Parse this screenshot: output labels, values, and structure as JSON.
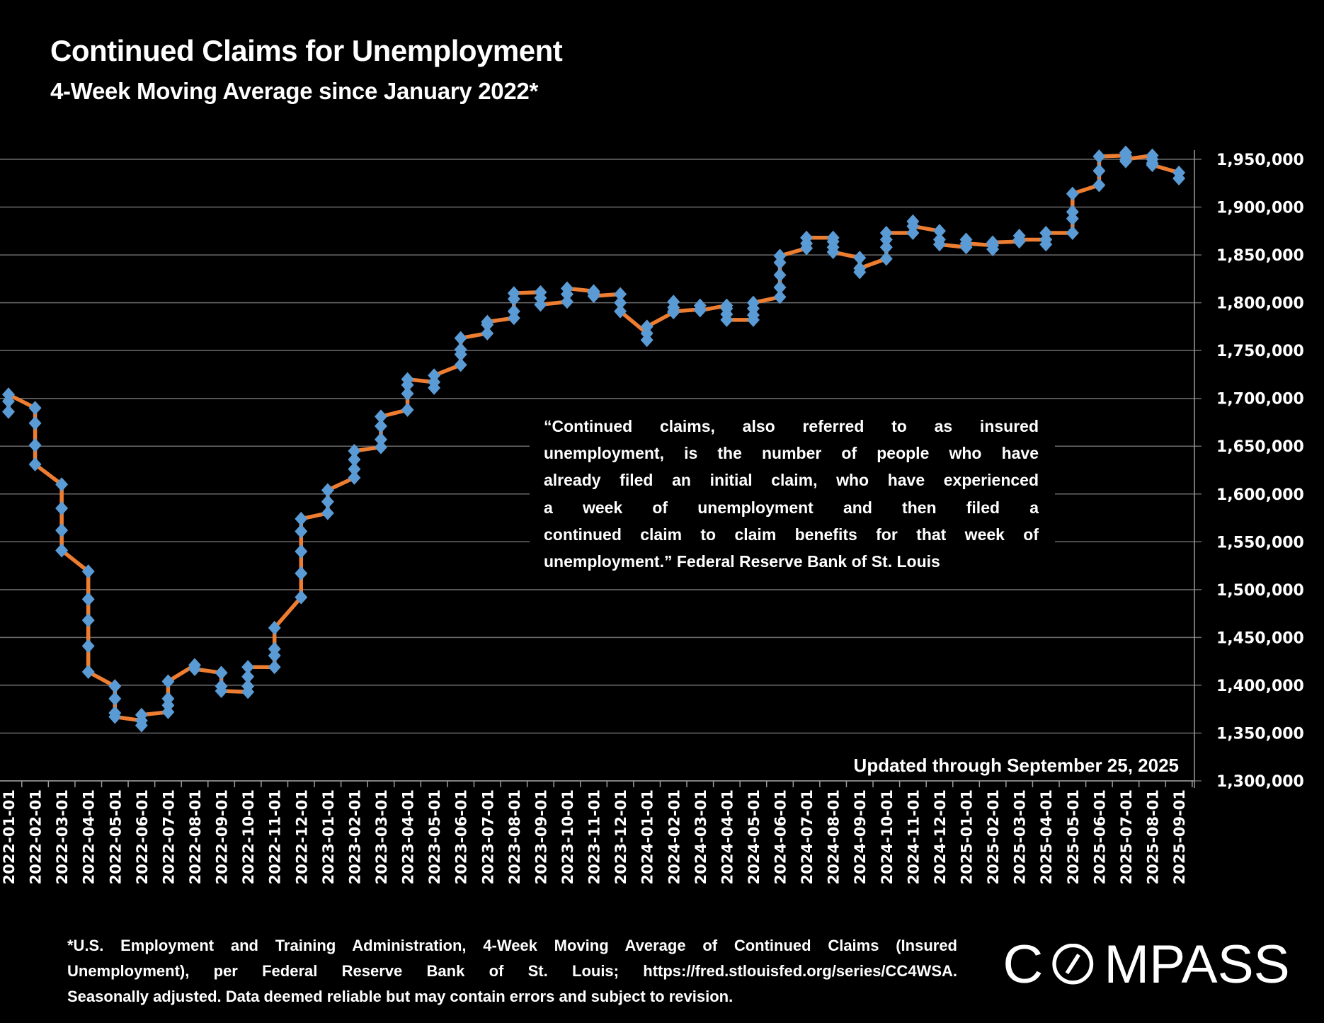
{
  "header": {
    "title": "Continued Claims for Unemployment",
    "subtitle": "4-Week Moving Average since January 2022*"
  },
  "annotation": {
    "lines": [
      "“Continued claims, also referred to as insured",
      "unemployment, is the number of people who have",
      "already filed an initial claim, who have experienced",
      "a week of unemployment and then filed a",
      "continued claim to claim benefits for that week of",
      "unemployment.”  Federal Reserve Bank of St. Louis"
    ],
    "updated": "Updated through September 25, 2025"
  },
  "footer": {
    "lines": [
      "*U.S. Employment and Training Administration, 4-Week Moving Average of Continued Claims (Insured",
      "Unemployment), per Federal Reserve Bank of St. Louis; https://fred.stlouisfed.org/series/CC4WSA.",
      "Seasonally adjusted. Data deemed reliable but may contain errors and subject to revision."
    ]
  },
  "logo": "COMPASS",
  "colors": {
    "line": "#ED7D31",
    "marker": "#5B9BD5",
    "grid": "#6b6b6b",
    "background": "#000000",
    "text": "#ffffff"
  },
  "chart_data": {
    "type": "line",
    "title": "Continued Claims for Unemployment",
    "subtitle": "4-Week Moving Average since January 2022*",
    "marker": "diamond",
    "grid": true,
    "y_axis_position": "right",
    "ylim": [
      1300000,
      1950000
    ],
    "y_ticks": [
      "1,950,000",
      "1,900,000",
      "1,850,000",
      "1,800,000",
      "1,750,000",
      "1,700,000",
      "1,650,000",
      "1,600,000",
      "1,550,000",
      "1,500,000",
      "1,450,000",
      "1,400,000",
      "1,350,000",
      "1,300,000"
    ],
    "y_tick_values": [
      1950000,
      1900000,
      1850000,
      1800000,
      1750000,
      1700000,
      1650000,
      1600000,
      1550000,
      1500000,
      1450000,
      1400000,
      1350000,
      1300000
    ],
    "series": [
      {
        "weekly_values_by_month": [
          {
            "month": "2022-01-01",
            "values": [
              1686000,
              1697000,
              1704000
            ]
          },
          {
            "month": "2022-02-01",
            "values": [
              1690000,
              1674000,
              1651000,
              1631000
            ]
          },
          {
            "month": "2022-03-01",
            "values": [
              1610000,
              1585000,
              1562000,
              1541000
            ]
          },
          {
            "month": "2022-04-01",
            "values": [
              1519000,
              1490000,
              1468000,
              1441000,
              1414000
            ]
          },
          {
            "month": "2022-05-01",
            "values": [
              1399000,
              1386000,
              1371000,
              1367000
            ]
          },
          {
            "month": "2022-06-01",
            "values": [
              1363000,
              1358000,
              1369000
            ]
          },
          {
            "month": "2022-07-01",
            "values": [
              1372000,
              1379000,
              1386000,
              1404000
            ]
          },
          {
            "month": "2022-08-01",
            "values": [
              1421000,
              1417000
            ]
          },
          {
            "month": "2022-09-01",
            "values": [
              1413000,
              1399000,
              1394000
            ]
          },
          {
            "month": "2022-10-01",
            "values": [
              1393000,
              1399000,
              1409000,
              1419000
            ]
          },
          {
            "month": "2022-11-01",
            "values": [
              1419000,
              1431000,
              1438000,
              1460000
            ]
          },
          {
            "month": "2022-12-01",
            "values": [
              1492000,
              1517000,
              1540000,
              1561000,
              1574000
            ]
          },
          {
            "month": "2023-01-01",
            "values": [
              1580000,
              1592000,
              1604000
            ]
          },
          {
            "month": "2023-02-01",
            "values": [
              1617000,
              1626000,
              1636000,
              1645000
            ]
          },
          {
            "month": "2023-03-01",
            "values": [
              1649000,
              1657000,
              1671000,
              1681000
            ]
          },
          {
            "month": "2023-04-01",
            "values": [
              1688000,
              1705000,
              1714000,
              1720000
            ]
          },
          {
            "month": "2023-05-01",
            "values": [
              1717000,
              1711000,
              1724000
            ]
          },
          {
            "month": "2023-06-01",
            "values": [
              1735000,
              1746000,
              1751000,
              1763000
            ]
          },
          {
            "month": "2023-07-01",
            "values": [
              1768000,
              1777000,
              1780000
            ]
          },
          {
            "month": "2023-08-01",
            "values": [
              1784000,
              1791000,
              1804000,
              1810000
            ]
          },
          {
            "month": "2023-09-01",
            "values": [
              1811000,
              1805000,
              1798000
            ]
          },
          {
            "month": "2023-10-01",
            "values": [
              1801000,
              1809000,
              1815000
            ]
          },
          {
            "month": "2023-11-01",
            "values": [
              1812000,
              1810000,
              1807000
            ]
          },
          {
            "month": "2023-12-01",
            "values": [
              1809000,
              1800000,
              1791000
            ]
          },
          {
            "month": "2024-01-01",
            "values": [
              1768000,
              1761000,
              1775000
            ]
          },
          {
            "month": "2024-02-01",
            "values": [
              1790000,
              1801000,
              1795000,
              1791000
            ]
          },
          {
            "month": "2024-03-01",
            "values": [
              1793000,
              1797000,
              1793000,
              1792000
            ]
          },
          {
            "month": "2024-04-01",
            "values": [
              1797000,
              1794000,
              1788000,
              1782000
            ]
          },
          {
            "month": "2024-05-01",
            "values": [
              1782000,
              1787000,
              1794000,
              1800000
            ]
          },
          {
            "month": "2024-06-01",
            "values": [
              1806000,
              1816000,
              1829000,
              1842000,
              1849000
            ]
          },
          {
            "month": "2024-07-01",
            "values": [
              1857000,
              1862000,
              1868000
            ]
          },
          {
            "month": "2024-08-01",
            "values": [
              1868000,
              1864000,
              1858000,
              1853000
            ]
          },
          {
            "month": "2024-09-01",
            "values": [
              1847000,
              1832000,
              1836000
            ]
          },
          {
            "month": "2024-10-01",
            "values": [
              1846000,
              1858000,
              1866000,
              1873000
            ]
          },
          {
            "month": "2024-11-01",
            "values": [
              1873000,
              1885000,
              1880000
            ]
          },
          {
            "month": "2024-12-01",
            "values": [
              1875000,
              1866000,
              1861000
            ]
          },
          {
            "month": "2025-01-01",
            "values": [
              1858000,
              1866000,
              1862000
            ]
          },
          {
            "month": "2025-02-01",
            "values": [
              1860000,
              1856000,
              1863000
            ]
          },
          {
            "month": "2025-03-01",
            "values": [
              1864000,
              1870000,
              1866000
            ]
          },
          {
            "month": "2025-04-01",
            "values": [
              1866000,
              1861000,
              1873000
            ]
          },
          {
            "month": "2025-05-01",
            "values": [
              1873000,
              1888000,
              1895000,
              1914000
            ]
          },
          {
            "month": "2025-06-01",
            "values": [
              1923000,
              1938000,
              1953000
            ]
          },
          {
            "month": "2025-07-01",
            "values": [
              1954000,
              1957000,
              1948000,
              1950000
            ]
          },
          {
            "month": "2025-08-01",
            "values": [
              1954000,
              1950000,
              1946000,
              1944000
            ]
          },
          {
            "month": "2025-09-01",
            "values": [
              1936000,
              1930000
            ]
          }
        ]
      }
    ]
  }
}
